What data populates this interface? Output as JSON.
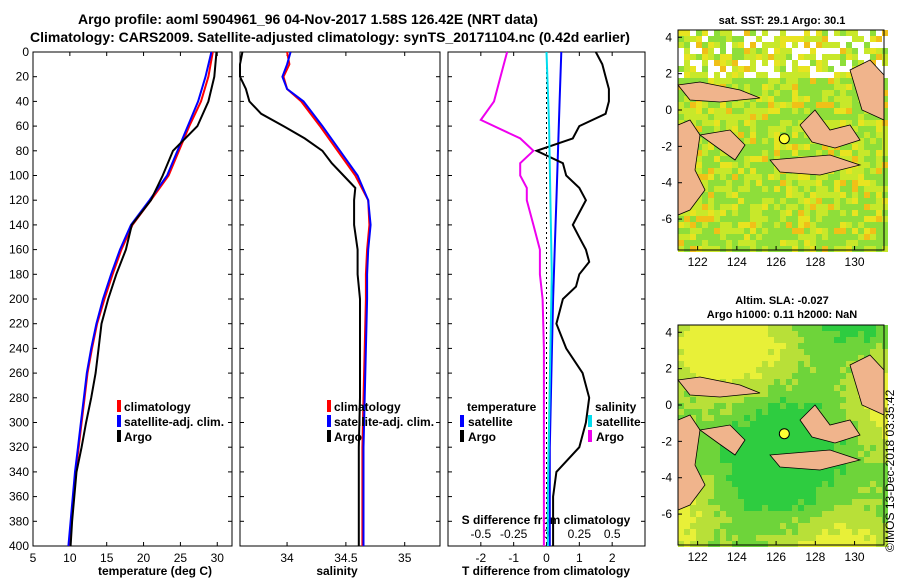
{
  "figure": {
    "title_line1": "Argo profile: aoml 5904961_96 04-Nov-2017 1.58S 126.42E (NRT data)",
    "title_line2": "Climatology: CARS2009. Satellite-adjusted climatology: synTS_20171104.nc (0.42d earlier)",
    "credit": "©IMOS 13-Dec-2018 03:35:42"
  },
  "colors": {
    "climatology": "#ff0000",
    "satellite": "#0000ff",
    "argo": "#000000",
    "temperature_diff": "#00ddee",
    "salinity_diff": "#ee00ee",
    "land": "#f0b48c"
  },
  "chart_data": [
    {
      "id": "temperature",
      "type": "line",
      "xlabel": "temperature (deg C)",
      "ylabel": "",
      "xlim": [
        5,
        32
      ],
      "ylim": [
        400,
        0
      ],
      "xticks": [
        "5",
        "10",
        "15",
        "20",
        "25",
        "30"
      ],
      "yticks": [
        "0",
        "20",
        "40",
        "60",
        "80",
        "100",
        "120",
        "140",
        "160",
        "180",
        "200",
        "220",
        "240",
        "260",
        "280",
        "300",
        "320",
        "340",
        "360",
        "380",
        "400"
      ],
      "legend": [
        "climatology",
        "satellite-adj. clim.",
        "Argo"
      ],
      "series": [
        {
          "name": "climatology",
          "depth": [
            0,
            20,
            40,
            60,
            80,
            100,
            120,
            140,
            160,
            180,
            200,
            220,
            240,
            260,
            280,
            300,
            320,
            340,
            360,
            380,
            400
          ],
          "values": [
            29.4,
            28.8,
            27.8,
            26.2,
            24.8,
            23.4,
            21.0,
            18.5,
            17.0,
            15.8,
            14.7,
            13.7,
            13.0,
            12.4,
            12.0,
            11.6,
            11.2,
            10.8,
            10.5,
            10.2,
            9.9
          ]
        },
        {
          "name": "satellite-adj. clim.",
          "depth": [
            0,
            20,
            40,
            60,
            80,
            100,
            120,
            140,
            160,
            180,
            200,
            220,
            240,
            260,
            280,
            300,
            320,
            340,
            360,
            380,
            400
          ],
          "values": [
            29.2,
            28.4,
            27.4,
            26.0,
            24.6,
            23.2,
            20.8,
            18.3,
            16.8,
            15.6,
            14.5,
            13.6,
            12.9,
            12.3,
            11.9,
            11.5,
            11.1,
            10.7,
            10.4,
            10.1,
            9.8
          ]
        },
        {
          "name": "Argo",
          "depth": [
            0,
            20,
            40,
            60,
            80,
            100,
            120,
            140,
            160,
            180,
            200,
            220,
            240,
            260,
            280,
            300,
            320,
            340,
            360,
            380,
            400
          ],
          "values": [
            29.9,
            29.6,
            28.8,
            27.3,
            24.0,
            22.6,
            21.0,
            18.4,
            17.6,
            16.3,
            15.2,
            14.3,
            13.9,
            13.5,
            12.9,
            12.2,
            11.6,
            10.9,
            10.6,
            10.3,
            10.1
          ]
        }
      ]
    },
    {
      "id": "salinity",
      "type": "line",
      "xlabel": "salinity",
      "ylabel": "",
      "xlim": [
        33.6,
        35.3
      ],
      "ylim": [
        400,
        0
      ],
      "xticks": [
        "34",
        "34.5",
        "35"
      ],
      "legend": [
        "climatology",
        "satellite-adj. clim.",
        "Argo"
      ],
      "series": [
        {
          "name": "climatology",
          "depth": [
            0,
            10,
            20,
            30,
            40,
            60,
            80,
            100,
            120,
            140,
            160,
            180,
            200,
            240,
            280,
            320,
            360,
            400
          ],
          "values": [
            34.0,
            34.02,
            33.97,
            34.0,
            34.12,
            34.28,
            34.43,
            34.58,
            34.69,
            34.7,
            34.68,
            34.67,
            34.67,
            34.66,
            34.65,
            34.64,
            34.64,
            34.64
          ]
        },
        {
          "name": "satellite-adj. clim.",
          "depth": [
            0,
            10,
            20,
            30,
            40,
            60,
            80,
            100,
            120,
            140,
            160,
            180,
            200,
            240,
            280,
            320,
            360,
            400
          ],
          "values": [
            34.03,
            34.0,
            33.96,
            34.0,
            34.14,
            34.3,
            34.45,
            34.6,
            34.69,
            34.71,
            34.69,
            34.68,
            34.68,
            34.67,
            34.66,
            34.65,
            34.65,
            34.65
          ]
        },
        {
          "name": "Argo",
          "depth": [
            0,
            10,
            20,
            30,
            40,
            50,
            60,
            70,
            80,
            90,
            100,
            110,
            120,
            140,
            160,
            180,
            200,
            240,
            280,
            320,
            360,
            400
          ],
          "values": [
            33.62,
            33.6,
            33.6,
            33.65,
            33.68,
            33.78,
            33.97,
            34.15,
            34.3,
            34.38,
            34.48,
            34.58,
            34.57,
            34.57,
            34.6,
            34.6,
            34.62,
            34.62,
            34.62,
            34.61,
            34.61,
            34.61
          ]
        }
      ]
    },
    {
      "id": "difference",
      "type": "line",
      "xlabel": "T difference from climatology",
      "xlabel_top": "S difference from climatology",
      "xlim": [
        -3,
        3
      ],
      "ylim": [
        400,
        0
      ],
      "xticks": [
        "-2",
        "-1",
        "0",
        "1",
        "2"
      ],
      "xticks_top": [
        "-0.5",
        "-0.25",
        "0",
        "0.25",
        "0.5"
      ],
      "legend_left": {
        "title": "temperature",
        "items": [
          "satellite",
          "Argo"
        ]
      },
      "legend_right": {
        "title": "salinity",
        "items": [
          "satellite",
          "Argo"
        ]
      },
      "series": [
        {
          "name": "temperature satellite",
          "depth": [
            0,
            40,
            80,
            120,
            160,
            200,
            260,
            320,
            400
          ],
          "values": [
            0.45,
            0.4,
            0.35,
            0.3,
            0.25,
            0.2,
            0.15,
            0.1,
            0.1
          ]
        },
        {
          "name": "temperature Argo",
          "depth": [
            0,
            10,
            20,
            30,
            40,
            50,
            60,
            70,
            80,
            90,
            100,
            110,
            120,
            130,
            140,
            150,
            160,
            170,
            180,
            190,
            200,
            220,
            240,
            260,
            280,
            300,
            320,
            340,
            360,
            380,
            400
          ],
          "values": [
            1.5,
            1.7,
            1.8,
            1.9,
            1.9,
            1.8,
            1.0,
            0.8,
            -0.3,
            0.5,
            0.6,
            1.0,
            1.2,
            1.0,
            0.8,
            1.0,
            1.2,
            1.3,
            1.0,
            0.9,
            0.5,
            0.3,
            0.6,
            1.1,
            1.3,
            1.2,
            1.0,
            0.3,
            0.2,
            0.2,
            0.2
          ]
        },
        {
          "name": "salinity satellite",
          "depth": [
            0,
            60,
            120,
            180,
            240,
            300,
            360,
            400
          ],
          "values": [
            0.0,
            0.02,
            0.03,
            0.04,
            0.03,
            0.02,
            0.01,
            0.01
          ]
        },
        {
          "name": "salinity Argo",
          "depth": [
            0,
            20,
            40,
            55,
            70,
            80,
            90,
            100,
            110,
            120,
            140,
            160,
            180,
            200,
            240,
            280,
            320,
            360,
            400
          ],
          "values": [
            -0.3,
            -0.35,
            -0.4,
            -0.5,
            -0.2,
            -0.1,
            -0.2,
            -0.2,
            -0.15,
            -0.15,
            -0.1,
            -0.05,
            -0.05,
            -0.03,
            -0.02,
            -0.02,
            -0.02,
            -0.02,
            -0.02
          ]
        }
      ]
    },
    {
      "id": "sst_map",
      "type": "heatmap",
      "title": "sat. SST: 29.1  Argo: 30.1",
      "xticks": [
        "122",
        "124",
        "126",
        "128",
        "130"
      ],
      "yticks": [
        "4",
        "2",
        "0",
        "-2",
        "-4",
        "-6"
      ],
      "xlim": [
        121,
        131.5
      ],
      "ylim": [
        -7.7,
        4.4
      ],
      "argo_position": {
        "lon": 126.42,
        "lat": -1.58
      }
    },
    {
      "id": "sla_map",
      "type": "heatmap",
      "title": "Altim. SLA: -0.027",
      "subtitle": "Argo h1000: 0.11 h2000: NaN",
      "xticks": [
        "122",
        "124",
        "126",
        "128",
        "130"
      ],
      "yticks": [
        "4",
        "2",
        "0",
        "-2",
        "-4",
        "-6"
      ],
      "xlim": [
        121,
        131.5
      ],
      "ylim": [
        -7.7,
        4.4
      ],
      "argo_position": {
        "lon": 126.42,
        "lat": -1.58
      }
    }
  ]
}
